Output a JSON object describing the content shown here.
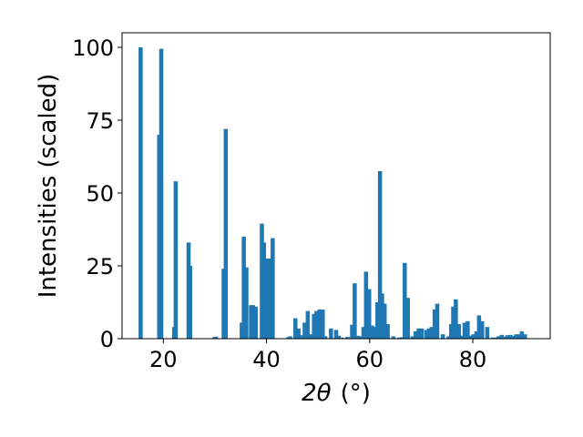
{
  "chart_data": {
    "type": "bar",
    "title": "",
    "xlabel_main": "2θ",
    "xlabel_unit": "(°)",
    "ylabel": "Intensities (scaled)",
    "xlim": [
      12,
      95
    ],
    "ylim": [
      0,
      105
    ],
    "xticks": [
      20,
      40,
      60,
      80
    ],
    "yticks": [
      0,
      25,
      50,
      75,
      100
    ],
    "grid": false,
    "legend": "none",
    "bar_color": "#1f77b4",
    "bar_width": 0.8,
    "series": [
      {
        "x": [
          15.6,
          19.2,
          19.6,
          22.1,
          22.4,
          24.9,
          25.2,
          29.9,
          30.2,
          31.7,
          32.1,
          35.2,
          35.6,
          36.1,
          37.0,
          37.4,
          37.9,
          39.1,
          39.5,
          39.9,
          40.6,
          41.2,
          44.2,
          44.6,
          45.6,
          46.2,
          46.7,
          47.4,
          48.0,
          48.6,
          49.2,
          49.7,
          50.3,
          50.9,
          51.4,
          52.5,
          53.5,
          54.0,
          54.6,
          55.7,
          56.6,
          57.1,
          57.7,
          58.3,
          58.8,
          59.3,
          59.9,
          60.5,
          61.0,
          61.5,
          62.0,
          62.4,
          62.9,
          63.5,
          64.6,
          65.7,
          66.3,
          66.8,
          67.4,
          68.3,
          68.9,
          69.5,
          70.1,
          71.0,
          71.5,
          72.0,
          72.6,
          73.1,
          74.2,
          75.3,
          75.8,
          76.2,
          76.7,
          77.3,
          77.9,
          78.4,
          79.0,
          79.5,
          80.1,
          80.7,
          81.2,
          81.8,
          82.8,
          83.9,
          84.4,
          85.0,
          85.6,
          86.1,
          86.7,
          87.3,
          87.8,
          88.4,
          89.0,
          89.5,
          90.1
        ],
        "values": [
          100.0,
          70.0,
          99.5,
          4.0,
          54.0,
          33.0,
          25.0,
          0.5,
          0.7,
          24.0,
          72.0,
          5.5,
          35.0,
          24.5,
          11.5,
          11.5,
          11.0,
          39.5,
          33.0,
          27.5,
          27.5,
          34.5,
          0.5,
          0.8,
          7.0,
          3.5,
          1.2,
          5.5,
          9.5,
          1.5,
          8.5,
          9.5,
          10.0,
          10.0,
          0.8,
          3.5,
          3.0,
          1.0,
          0.4,
          0.6,
          4.8,
          19.0,
          1.0,
          0.8,
          4.0,
          23.0,
          17.0,
          4.5,
          4.0,
          12.5,
          57.5,
          15.5,
          12.0,
          5.0,
          0.8,
          0.4,
          0.5,
          26.0,
          14.0,
          0.8,
          2.5,
          3.5,
          3.5,
          3.0,
          3.5,
          4.0,
          10.0,
          12.0,
          1.5,
          0.8,
          5.0,
          11.0,
          13.5,
          5.0,
          1.0,
          5.5,
          6.0,
          1.0,
          1.5,
          2.5,
          8.0,
          6.0,
          4.0,
          0.4,
          0.4,
          0.8,
          1.3,
          0.7,
          1.2,
          1.3,
          0.9,
          1.5,
          1.5,
          2.5,
          1.5
        ]
      }
    ]
  }
}
